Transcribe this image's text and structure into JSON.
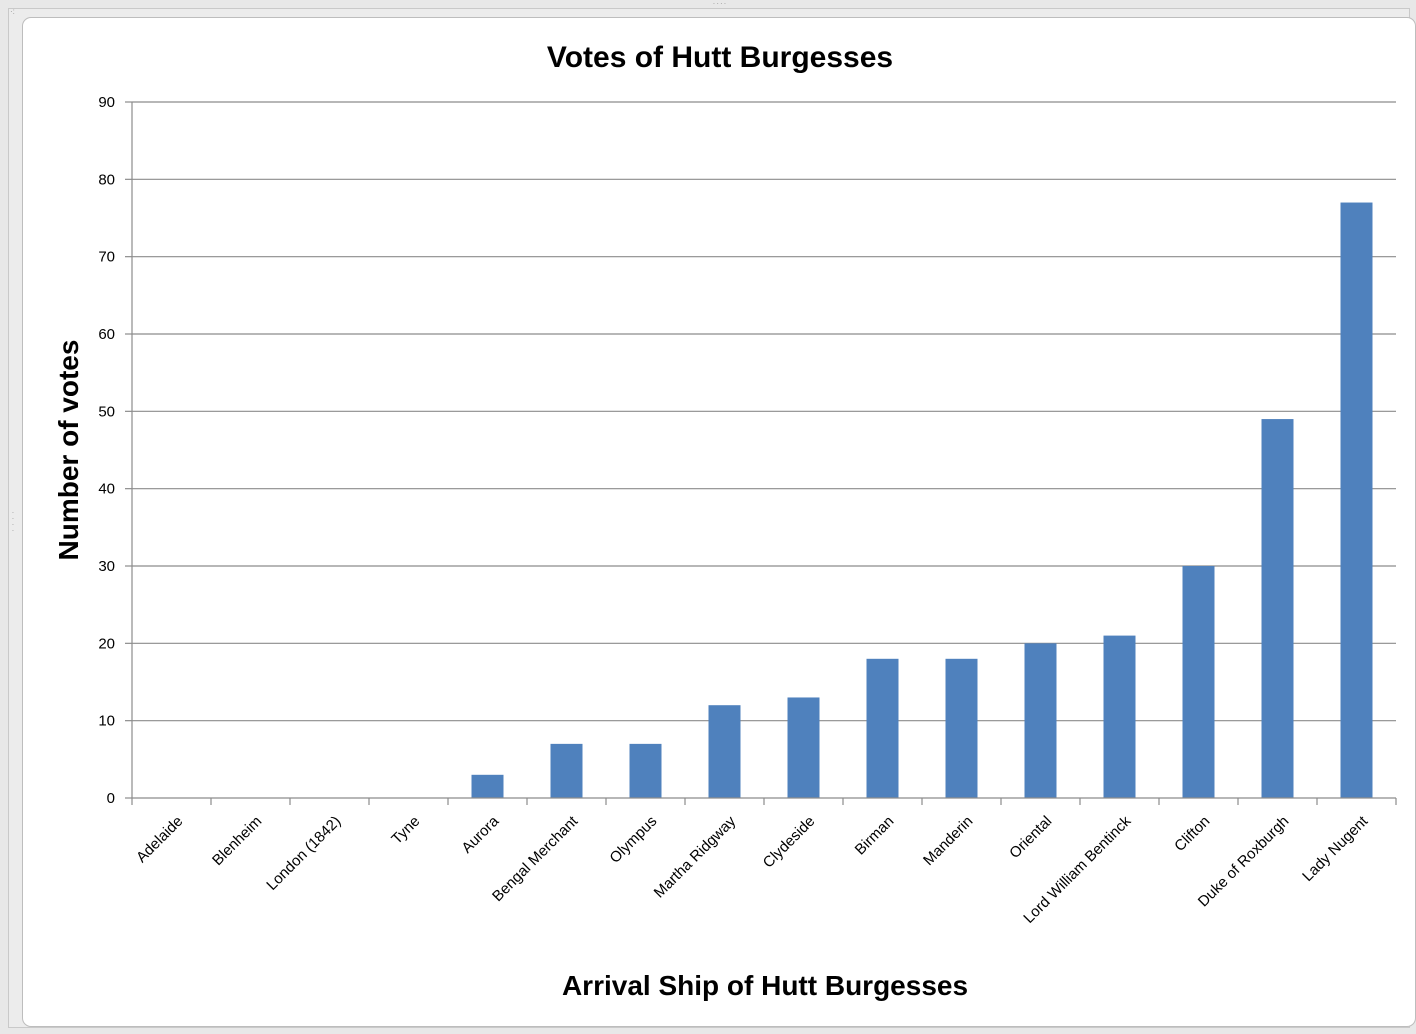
{
  "chart_data": {
    "type": "bar",
    "title": "Votes of Hutt Burgesses",
    "xlabel": "Arrival Ship of Hutt Burgesses",
    "ylabel": "Number of votes",
    "ylim": [
      0,
      90
    ],
    "yticks": [
      0,
      10,
      20,
      30,
      40,
      50,
      60,
      70,
      80,
      90
    ],
    "grid": true,
    "legend": "none",
    "color": "#4f81bd",
    "categories": [
      "Adelaide",
      "Blenheim",
      "London (1842)",
      "Tyne",
      "Aurora",
      "Bengal Merchant",
      "Olympus",
      "Martha Ridgway",
      "Clydeside",
      "Birman",
      "Manderin",
      "Oriental",
      "Lord William Bentinck",
      "Clifton",
      "Duke of Roxburgh",
      "Lady Nugent"
    ],
    "values": [
      0,
      0,
      0,
      0,
      3,
      7,
      7,
      12,
      13,
      18,
      18,
      20,
      21,
      30,
      49,
      77
    ]
  }
}
